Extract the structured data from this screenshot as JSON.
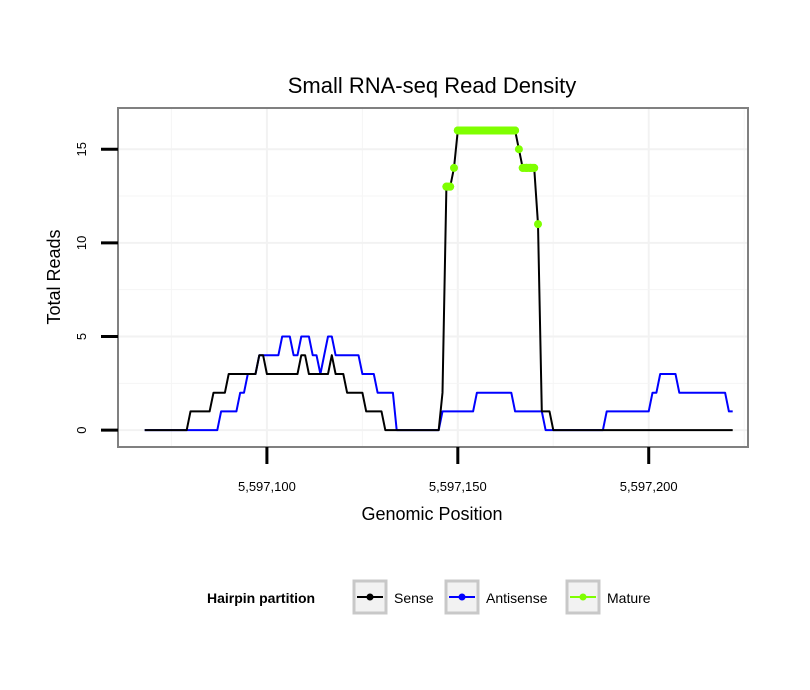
{
  "chart_data": {
    "type": "line",
    "title": "Small RNA-seq Read Density",
    "xlabel": "Genomic Position",
    "ylabel": "Total Reads",
    "xlim": [
      5597061,
      5597226
    ],
    "ylim": [
      -0.9,
      17.2
    ],
    "x_ticks": [
      {
        "value": 5597100,
        "label": "5,597,100"
      },
      {
        "value": 5597150,
        "label": "5,597,150"
      },
      {
        "value": 5597200,
        "label": "5,597,200"
      }
    ],
    "y_ticks": [
      {
        "value": 0,
        "label": "0"
      },
      {
        "value": 5,
        "label": "5"
      },
      {
        "value": 10,
        "label": "10"
      },
      {
        "value": 15,
        "label": "15"
      }
    ],
    "legend": {
      "title": "Hairpin partition",
      "position": "bottom",
      "entries": [
        {
          "name": "Sense",
          "color": "#000000"
        },
        {
          "name": "Antisense",
          "color": "#0000ff"
        },
        {
          "name": "Mature",
          "color": "#7fff00"
        }
      ]
    },
    "series": [
      {
        "name": "Antisense",
        "color": "#0000ff",
        "points": [
          [
            5597068,
            0
          ],
          [
            5597087,
            0
          ],
          [
            5597088,
            1
          ],
          [
            5597092,
            1
          ],
          [
            5597093,
            2
          ],
          [
            5597094,
            2
          ],
          [
            5597095,
            3
          ],
          [
            5597097,
            3
          ],
          [
            5597098,
            4
          ],
          [
            5597103,
            4
          ],
          [
            5597104,
            5
          ],
          [
            5597106,
            5
          ],
          [
            5597107,
            4
          ],
          [
            5597108,
            4
          ],
          [
            5597109,
            5
          ],
          [
            5597111,
            5
          ],
          [
            5597112,
            4
          ],
          [
            5597113,
            4
          ],
          [
            5597114,
            3
          ],
          [
            5597115,
            4
          ],
          [
            5597116,
            5
          ],
          [
            5597117,
            5
          ],
          [
            5597118,
            4
          ],
          [
            5597124,
            4
          ],
          [
            5597125,
            3
          ],
          [
            5597128,
            3
          ],
          [
            5597129,
            2
          ],
          [
            5597133,
            2
          ],
          [
            5597134,
            0
          ],
          [
            5597145,
            0
          ],
          [
            5597146,
            1
          ],
          [
            5597154,
            1
          ],
          [
            5597155,
            2
          ],
          [
            5597164,
            2
          ],
          [
            5597165,
            1
          ],
          [
            5597172,
            1
          ],
          [
            5597173,
            0
          ],
          [
            5597188,
            0
          ],
          [
            5597189,
            1
          ],
          [
            5597200,
            1
          ],
          [
            5597201,
            2
          ],
          [
            5597202,
            2
          ],
          [
            5597203,
            3
          ],
          [
            5597207,
            3
          ],
          [
            5597208,
            2
          ],
          [
            5597220,
            2
          ],
          [
            5597221,
            1
          ],
          [
            5597222,
            1
          ]
        ]
      },
      {
        "name": "Sense",
        "color": "#000000",
        "points": [
          [
            5597068,
            0
          ],
          [
            5597079,
            0
          ],
          [
            5597080,
            1
          ],
          [
            5597085,
            1
          ],
          [
            5597086,
            2
          ],
          [
            5597089,
            2
          ],
          [
            5597090,
            3
          ],
          [
            5597097,
            3
          ],
          [
            5597098,
            4
          ],
          [
            5597099,
            4
          ],
          [
            5597100,
            3
          ],
          [
            5597108,
            3
          ],
          [
            5597109,
            4
          ],
          [
            5597110,
            4
          ],
          [
            5597111,
            3
          ],
          [
            5597116,
            3
          ],
          [
            5597117,
            4
          ],
          [
            5597118,
            3
          ],
          [
            5597120,
            3
          ],
          [
            5597121,
            2
          ],
          [
            5597125,
            2
          ],
          [
            5597126,
            1
          ],
          [
            5597130,
            1
          ],
          [
            5597131,
            0
          ],
          [
            5597145,
            0
          ],
          [
            5597146,
            2
          ],
          [
            5597147,
            13
          ],
          [
            5597148,
            13
          ],
          [
            5597149,
            14
          ],
          [
            5597150,
            16
          ],
          [
            5597165,
            16
          ],
          [
            5597166,
            15
          ],
          [
            5597167,
            14
          ],
          [
            5597170,
            14
          ],
          [
            5597171,
            11
          ],
          [
            5597172,
            1
          ],
          [
            5597174,
            1
          ],
          [
            5597175,
            0
          ],
          [
            5597222,
            0
          ]
        ]
      },
      {
        "name": "Mature",
        "color": "#7fff00",
        "points": [
          [
            5597147,
            13
          ],
          [
            5597148,
            13
          ],
          [
            5597149,
            14
          ],
          [
            5597150,
            16
          ],
          [
            5597151,
            16
          ],
          [
            5597152,
            16
          ],
          [
            5597153,
            16
          ],
          [
            5597154,
            16
          ],
          [
            5597155,
            16
          ],
          [
            5597156,
            16
          ],
          [
            5597157,
            16
          ],
          [
            5597158,
            16
          ],
          [
            5597159,
            16
          ],
          [
            5597160,
            16
          ],
          [
            5597161,
            16
          ],
          [
            5597162,
            16
          ],
          [
            5597163,
            16
          ],
          [
            5597164,
            16
          ],
          [
            5597165,
            16
          ],
          [
            5597166,
            15
          ],
          [
            5597167,
            14
          ],
          [
            5597168,
            14
          ],
          [
            5597169,
            14
          ],
          [
            5597170,
            14
          ],
          [
            5597171,
            11
          ]
        ]
      }
    ]
  }
}
